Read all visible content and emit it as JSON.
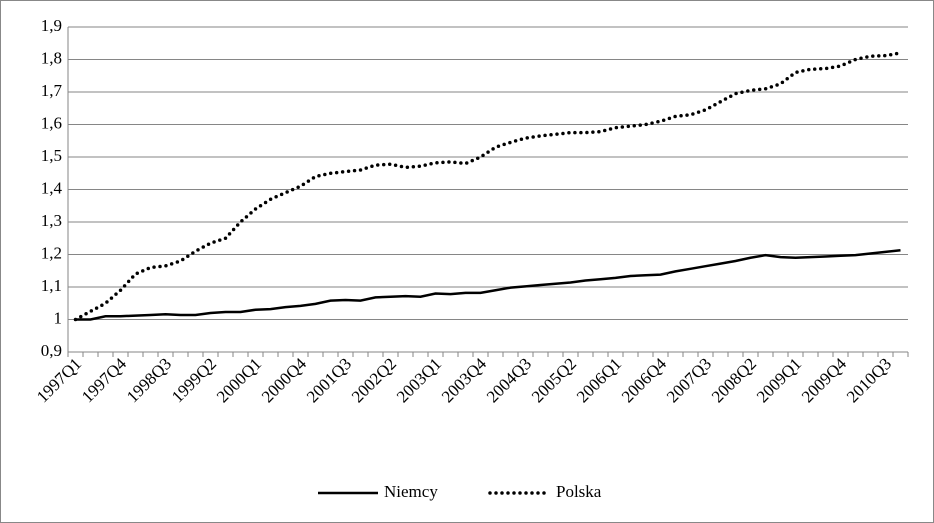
{
  "chart_data": {
    "type": "line",
    "categories": [
      "1997Q1",
      null,
      null,
      "1997Q4",
      null,
      null,
      "1998Q3",
      null,
      null,
      "1999Q2",
      null,
      null,
      "2000Q1",
      null,
      null,
      "2000Q4",
      null,
      null,
      "2001Q3",
      null,
      null,
      "2002Q2",
      null,
      null,
      "2003Q1",
      null,
      null,
      "2003Q4",
      null,
      null,
      "2004Q3",
      null,
      null,
      "2005Q2",
      null,
      null,
      "2006Q1",
      null,
      null,
      "2006Q4",
      null,
      null,
      "2007Q3",
      null,
      null,
      "2008Q2",
      null,
      null,
      "2009Q1",
      null,
      null,
      "2009Q4",
      null,
      null,
      "2010Q3",
      null
    ],
    "series": [
      {
        "name": "Niemcy",
        "color": "#000000",
        "dash": "solid",
        "values": [
          1.0,
          1.0,
          1.01,
          1.01,
          1.012,
          1.014,
          1.016,
          1.014,
          1.014,
          1.02,
          1.023,
          1.023,
          1.03,
          1.032,
          1.038,
          1.042,
          1.048,
          1.058,
          1.06,
          1.058,
          1.068,
          1.07,
          1.072,
          1.07,
          1.08,
          1.078,
          1.082,
          1.082,
          1.09,
          1.098,
          1.102,
          1.106,
          1.11,
          1.114,
          1.12,
          1.124,
          1.128,
          1.134,
          1.136,
          1.138,
          1.148,
          1.156,
          1.164,
          1.172,
          1.18,
          1.19,
          1.198,
          1.192,
          1.19,
          1.192,
          1.194,
          1.196,
          1.198,
          1.203,
          1.208,
          1.213
        ]
      },
      {
        "name": "Polska",
        "color": "#000000",
        "dash": "dotted",
        "values": [
          1.0,
          1.025,
          1.05,
          1.09,
          1.14,
          1.16,
          1.165,
          1.18,
          1.21,
          1.235,
          1.25,
          1.3,
          1.34,
          1.37,
          1.39,
          1.41,
          1.44,
          1.45,
          1.455,
          1.46,
          1.475,
          1.478,
          1.468,
          1.472,
          1.482,
          1.485,
          1.48,
          1.5,
          1.53,
          1.545,
          1.558,
          1.565,
          1.57,
          1.575,
          1.575,
          1.578,
          1.59,
          1.595,
          1.6,
          1.61,
          1.625,
          1.63,
          1.645,
          1.67,
          1.695,
          1.705,
          1.71,
          1.725,
          1.76,
          1.77,
          1.772,
          1.78,
          1.8,
          1.81,
          1.812,
          1.82
        ]
      }
    ],
    "ylim": [
      0.9,
      1.9
    ],
    "yticks": [
      {
        "value": 0.9,
        "label": "0,9"
      },
      1,
      {
        "value": 1.1,
        "label": "1,1"
      },
      {
        "value": 1.2,
        "label": "1,2"
      },
      {
        "value": 1.3,
        "label": "1,3"
      },
      {
        "value": 1.4,
        "label": "1,4"
      },
      {
        "value": 1.5,
        "label": "1,5"
      },
      {
        "value": 1.6,
        "label": "1,6"
      },
      {
        "value": 1.7,
        "label": "1,7"
      },
      {
        "value": 1.8,
        "label": "1,8"
      },
      {
        "value": 1.9,
        "label": "1,9"
      }
    ],
    "grid": true,
    "legend": "bottom"
  }
}
